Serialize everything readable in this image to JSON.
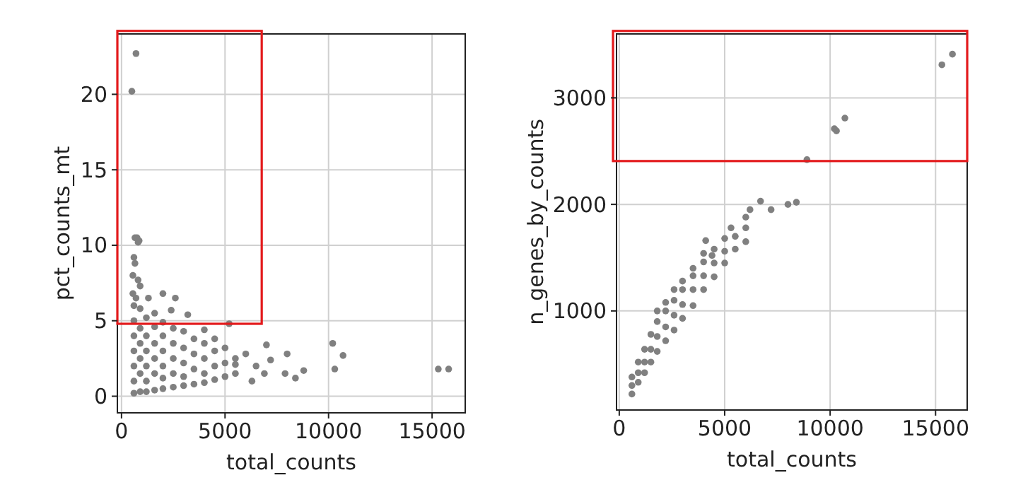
{
  "chart_data": [
    {
      "type": "scatter",
      "xlabel": "total_counts",
      "ylabel": "pct_counts_mt",
      "xlim": [
        -200,
        16600
      ],
      "ylim": [
        -1.1,
        24
      ],
      "xticks": [
        0,
        5000,
        10000,
        15000
      ],
      "yticks": [
        0,
        5,
        10,
        15,
        20
      ],
      "grid": true,
      "marker": "circle",
      "series": [
        {
          "color": "#808080",
          "x": [
            700,
            500,
            650,
            750,
            850,
            800,
            600,
            650,
            550,
            800,
            900,
            550,
            700,
            2000,
            2600,
            1300,
            3200,
            2400,
            5200,
            4000,
            5500,
            6000,
            6500,
            7000,
            7200,
            6900,
            6300,
            7900,
            8000,
            8400,
            8800,
            10200,
            10300,
            10700,
            15300,
            15800,
            600,
            600,
            600,
            600,
            600,
            600,
            600,
            900,
            900,
            900,
            900,
            900,
            900,
            1200,
            1200,
            1200,
            1200,
            1200,
            1200,
            1600,
            1600,
            1600,
            1600,
            1600,
            1600,
            2000,
            2000,
            2000,
            2000,
            2000,
            2000,
            2500,
            2500,
            2500,
            2500,
            2500,
            3000,
            3000,
            3000,
            3000,
            3000,
            3500,
            3500,
            3500,
            3500,
            4000,
            4000,
            4000,
            4000,
            4500,
            4500,
            4500,
            4500,
            5000,
            5000,
            5000,
            5500,
            5500
          ],
          "values": [
            22.7,
            20.2,
            10.5,
            10.5,
            10.3,
            10.2,
            9.2,
            8.8,
            8.0,
            7.7,
            7.3,
            6.8,
            6.5,
            6.8,
            6.5,
            6.5,
            5.4,
            5.7,
            4.8,
            4.4,
            2.5,
            2.8,
            2.0,
            3.4,
            2.4,
            1.5,
            1.0,
            1.5,
            2.8,
            1.2,
            1.7,
            3.5,
            1.8,
            2.7,
            1.8,
            1.8,
            0.2,
            1,
            2,
            3,
            4,
            5,
            6,
            0.3,
            1.5,
            2.5,
            3.5,
            4.5,
            5.8,
            0.3,
            1,
            2,
            3,
            4,
            5.2,
            0.4,
            1.5,
            2.5,
            3.5,
            4.6,
            5.5,
            0.5,
            1.2,
            2,
            3,
            4,
            4.9,
            0.6,
            1.5,
            2.5,
            3.5,
            4.5,
            0.7,
            1.3,
            2.2,
            3.2,
            4.3,
            0.8,
            1.8,
            2.8,
            3.8,
            0.9,
            1.5,
            2.5,
            3.5,
            1.1,
            2,
            3,
            3.8,
            1.3,
            2.2,
            3.2,
            1.5,
            2.1
          ]
        }
      ]
    },
    {
      "type": "scatter",
      "xlabel": "total_counts",
      "ylabel": "n_genes_by_counts",
      "xlim": [
        -130,
        16500
      ],
      "ylim": [
        70,
        3600
      ],
      "xticks": [
        0,
        5000,
        10000,
        15000
      ],
      "yticks": [
        1000,
        2000,
        3000
      ],
      "grid": true,
      "marker": "circle",
      "series": [
        {
          "color": "#808080",
          "x": [
            8000,
            8400,
            8900,
            10200,
            10300,
            10700,
            15300,
            15800,
            6700,
            6200,
            7200,
            5300,
            4100,
            4400,
            600,
            600,
            600,
            900,
            900,
            900,
            1200,
            1200,
            1200,
            1500,
            1500,
            1500,
            1800,
            1800,
            1800,
            1800,
            2200,
            2200,
            2200,
            2200,
            2600,
            2600,
            2600,
            2600,
            3000,
            3000,
            3000,
            3000,
            3500,
            3500,
            3500,
            3500,
            4000,
            4000,
            4000,
            4000,
            4500,
            4500,
            4500,
            5000,
            5000,
            5000,
            5500,
            5500,
            6000,
            6000,
            6000
          ],
          "values": [
            2000,
            2020,
            2420,
            2710,
            2690,
            2810,
            3310,
            3410,
            2030,
            1950,
            1950,
            1780,
            1660,
            1520,
            220,
            300,
            380,
            330,
            420,
            520,
            420,
            520,
            640,
            520,
            640,
            780,
            620,
            760,
            900,
            1000,
            720,
            850,
            1000,
            1080,
            820,
            960,
            1100,
            1200,
            930,
            1060,
            1200,
            1280,
            1050,
            1200,
            1330,
            1400,
            1200,
            1330,
            1460,
            1540,
            1320,
            1450,
            1580,
            1450,
            1560,
            1680,
            1580,
            1700,
            1650,
            1780,
            1880
          ]
        }
      ]
    }
  ]
}
